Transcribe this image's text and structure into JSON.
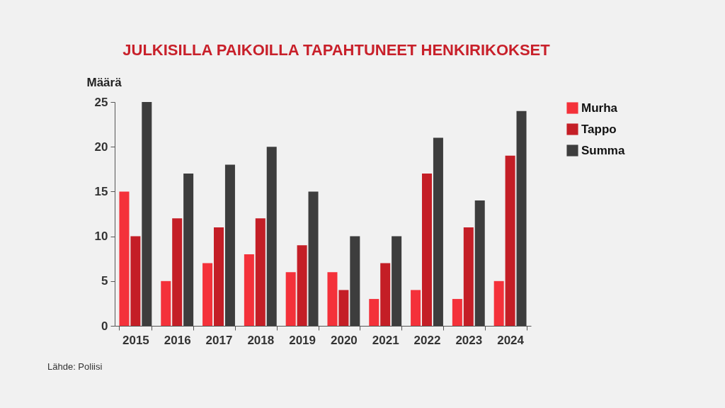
{
  "chart_data": {
    "type": "bar",
    "title": "JULKISILLA PAIKOILLA TAPAHTUNEET HENKIRIKOKSET",
    "ylabel": "Määrä",
    "categories": [
      "2015",
      "2016",
      "2017",
      "2018",
      "2019",
      "2020",
      "2021",
      "2022",
      "2023",
      "2024"
    ],
    "series": [
      {
        "name": "Murha",
        "color": "#f4313a",
        "values": [
          15,
          5,
          7,
          8,
          6,
          6,
          3,
          4,
          3,
          5
        ]
      },
      {
        "name": "Tappo",
        "color": "#c41e26",
        "values": [
          10,
          12,
          11,
          12,
          9,
          4,
          7,
          17,
          11,
          19
        ]
      },
      {
        "name": "Summa",
        "color": "#3d3d3d",
        "values": [
          25,
          17,
          18,
          20,
          15,
          10,
          10,
          21,
          14,
          24
        ]
      }
    ],
    "ylim": [
      0,
      25
    ],
    "yticks": [
      0,
      5,
      10,
      15,
      20,
      25
    ],
    "grid": false,
    "legend": "right",
    "annotations": [
      "Lähde: Poliisi"
    ]
  }
}
